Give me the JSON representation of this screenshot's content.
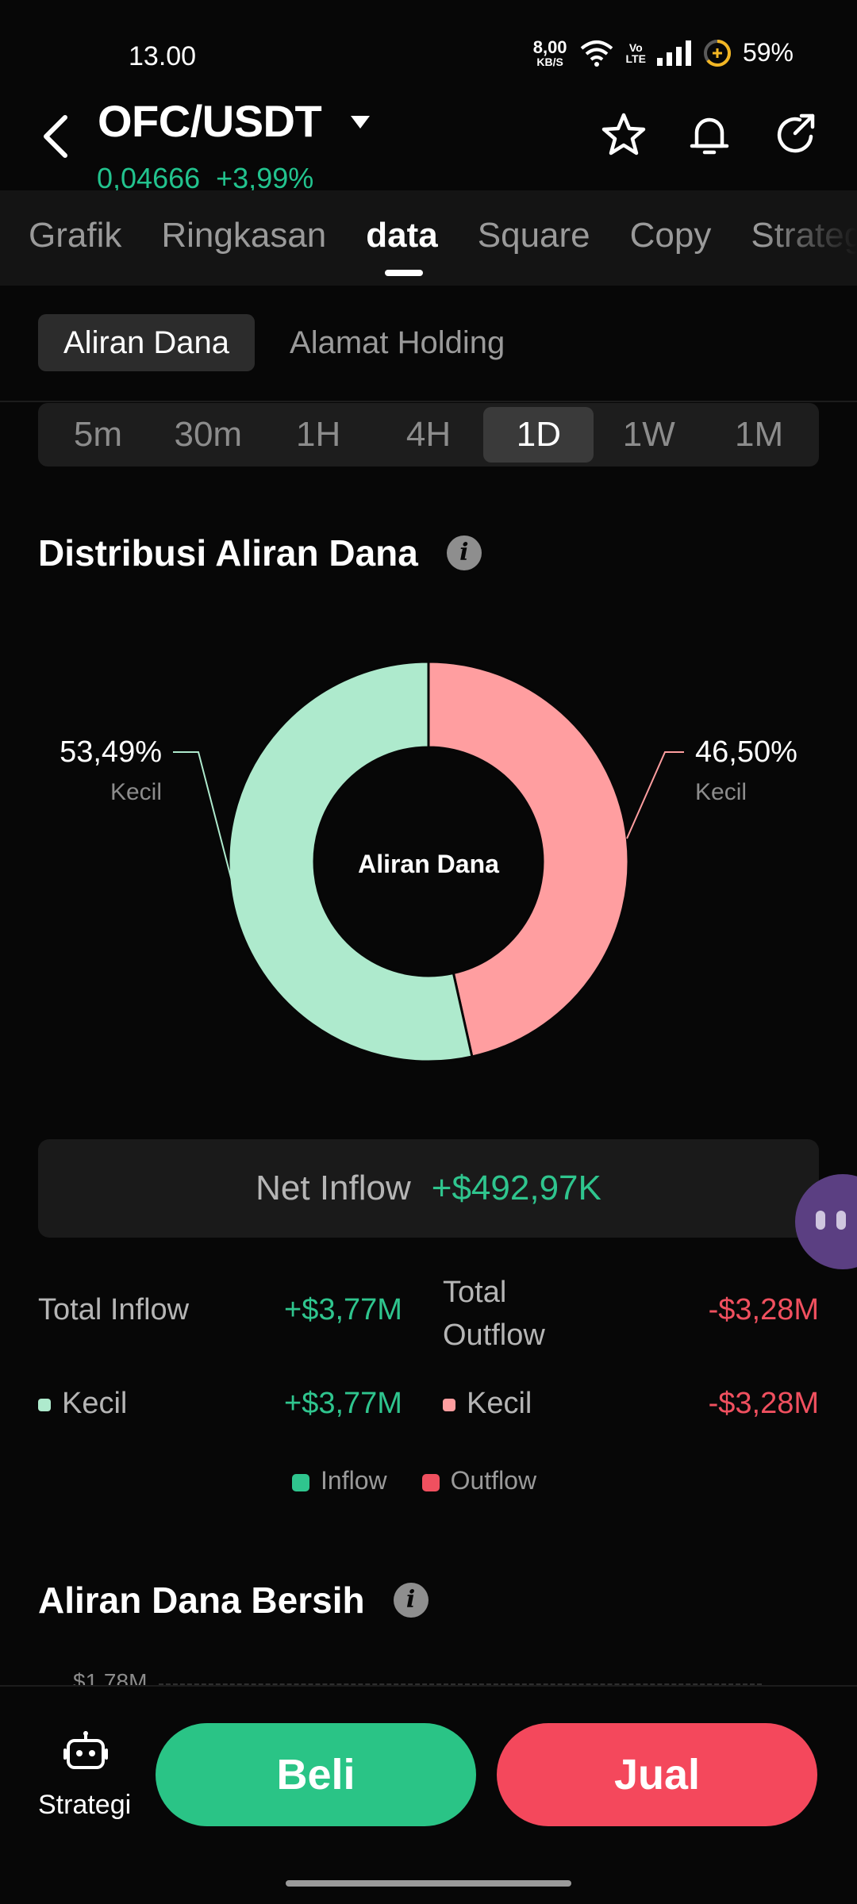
{
  "status_bar": {
    "time": "13.00",
    "net_speed_value": "8,00",
    "net_speed_unit": "KB/S",
    "volte_top": "Vo",
    "volte_bottom": "LTE",
    "battery": "59%"
  },
  "header": {
    "pair": "OFC/USDT",
    "price": "0,04666",
    "change": "+3,99%",
    "icons": [
      "back-arrow-icon",
      "caret-down-icon",
      "star-icon",
      "bell-icon",
      "share-icon"
    ]
  },
  "tabs": [
    {
      "label": "Grafik",
      "active": false
    },
    {
      "label": "Ringkasan",
      "active": false
    },
    {
      "label": "data",
      "active": true
    },
    {
      "label": "Square",
      "active": false
    },
    {
      "label": "Copy",
      "active": false
    },
    {
      "label": "Strategi",
      "active": false
    }
  ],
  "subtabs": [
    {
      "label": "Aliran Dana",
      "active": true
    },
    {
      "label": "Alamat Holding",
      "active": false
    }
  ],
  "time_range": [
    {
      "label": "5m",
      "active": false
    },
    {
      "label": "30m",
      "active": false
    },
    {
      "label": "1H",
      "active": false
    },
    {
      "label": "4H",
      "active": false
    },
    {
      "label": "1D",
      "active": true
    },
    {
      "label": "1W",
      "active": false
    },
    {
      "label": "1M",
      "active": false
    }
  ],
  "distribution": {
    "title": "Distribusi Aliran Dana",
    "info_glyph": "i",
    "center_label": "Aliran Dana",
    "slices": [
      {
        "pct": 46.5,
        "pct_label": "46,50%",
        "sub": "Kecil",
        "color": "#ff9ea0"
      },
      {
        "pct": 53.49,
        "pct_label": "53,49%",
        "sub": "Kecil",
        "color": "#aeeacd"
      }
    ]
  },
  "net_inflow": {
    "label": "Net Inflow",
    "value": "+$492,97K"
  },
  "flows": {
    "inflow_label": "Total Inflow",
    "inflow_value": "+$3,77M",
    "outflow_label_1": "Total",
    "outflow_label_2": "Outflow",
    "outflow_value": "-$3,28M",
    "small_in_label": "Kecil",
    "small_in_value": "+$3,77M",
    "small_out_label": "Kecil",
    "small_out_value": "-$3,28M",
    "small_in_color": "#aeeacd",
    "small_out_color": "#ff9ea0"
  },
  "legend": {
    "inflow": "Inflow",
    "outflow": "Outflow",
    "inflow_color": "#2fc58e",
    "outflow_color": "#f0505f"
  },
  "net_flow": {
    "title": "Aliran Dana Bersih",
    "info_glyph": "i",
    "axis_top": "$1,78M"
  },
  "bottom_bar": {
    "strategy_label": "Strategi",
    "buy": "Beli",
    "sell": "Jual"
  }
}
